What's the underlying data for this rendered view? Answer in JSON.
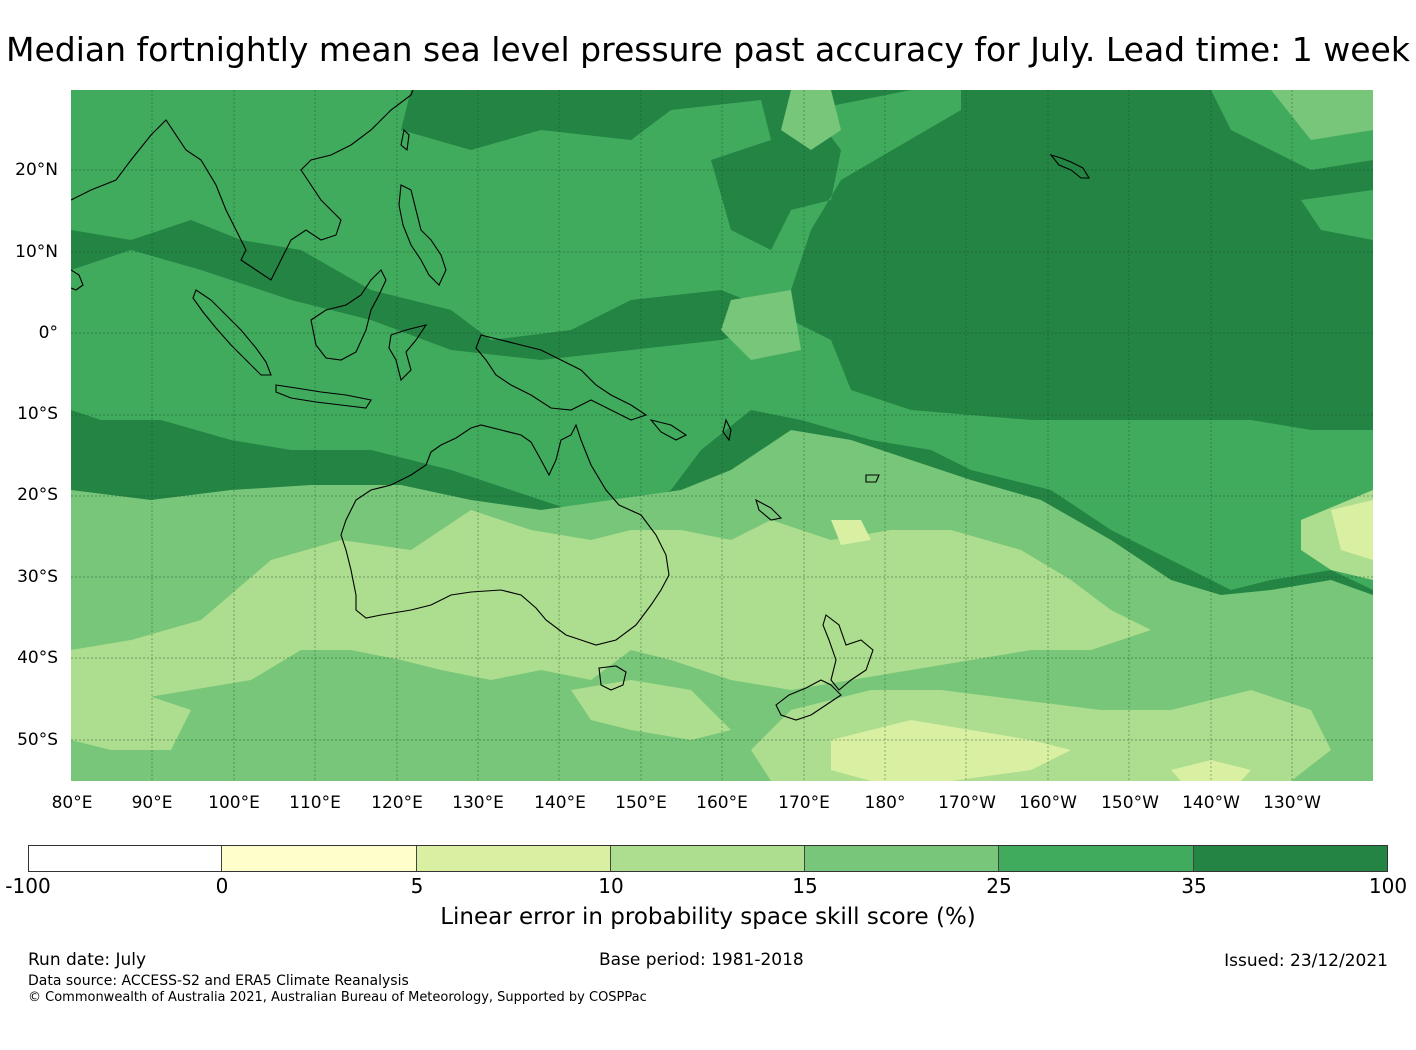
{
  "title": "Median fortnightly mean sea level pressure past accuracy for July. Lead time: 1 week",
  "map": {
    "lat_labels": [
      "20°N",
      "10°N",
      "0°",
      "10°S",
      "20°S",
      "30°S",
      "40°S",
      "50°S"
    ],
    "lon_labels": [
      "80°E",
      "90°E",
      "100°E",
      "110°E",
      "120°E",
      "130°E",
      "140°E",
      "150°E",
      "160°E",
      "170°E",
      "180°",
      "170°W",
      "160°W",
      "150°W",
      "140°W",
      "130°W"
    ]
  },
  "colorbar": {
    "label": "Linear error in probability space skill score (%)",
    "ticks": [
      "-100",
      "0",
      "5",
      "10",
      "15",
      "25",
      "35",
      "100"
    ],
    "colors": [
      "#ffffff",
      "#ffffcc",
      "#d9f0a3",
      "#addd8e",
      "#78c679",
      "#41ab5d",
      "#238443"
    ]
  },
  "footer": {
    "run_date": "Run date: July",
    "base_period": "Base period: 1981-2018",
    "issued": "Issued: 23/12/2021",
    "data_source": "Data source: ACCESS-S2 and ERA5 Climate Reanalysis",
    "copyright": "© Commonwealth of Australia 2021, Australian Bureau of Meteorology, Supported by COSPPac"
  }
}
